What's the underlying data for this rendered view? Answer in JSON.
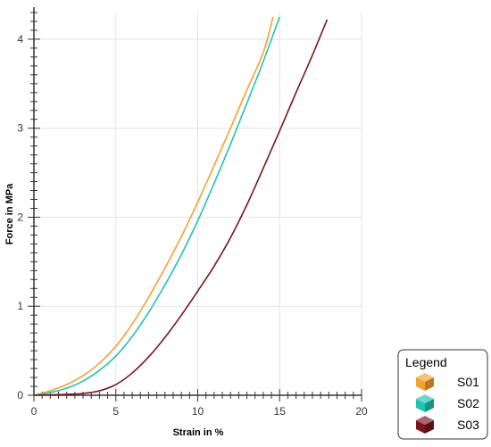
{
  "chart_data": {
    "type": "line",
    "title": "",
    "xlabel": "Strain  in %",
    "ylabel": "Force in MPa",
    "xlim": [
      0,
      20
    ],
    "ylim": [
      0,
      4.3
    ],
    "x_ticks": [
      0,
      5,
      10,
      15,
      20
    ],
    "y_ticks": [
      0,
      1,
      2,
      3,
      4
    ],
    "grid": true,
    "legend_title": "Legend",
    "legend_position": "bottom-right, outside plot",
    "series": [
      {
        "name": "S01",
        "color": "#f5a030",
        "icon": "orange-cube-icon",
        "points": [
          [
            0,
            0
          ],
          [
            1,
            0.05
          ],
          [
            2,
            0.12
          ],
          [
            3,
            0.22
          ],
          [
            4,
            0.36
          ],
          [
            5,
            0.55
          ],
          [
            6,
            0.8
          ],
          [
            7,
            1.1
          ],
          [
            8,
            1.43
          ],
          [
            9,
            1.78
          ],
          [
            10,
            2.17
          ],
          [
            11,
            2.58
          ],
          [
            12,
            3.0
          ],
          [
            13,
            3.43
          ],
          [
            14,
            3.85
          ],
          [
            14.6,
            4.25
          ]
        ]
      },
      {
        "name": "S02",
        "color": "#1fc4b0",
        "icon": "teal-cube-icon",
        "points": [
          [
            0,
            0
          ],
          [
            1,
            0.03
          ],
          [
            2,
            0.08
          ],
          [
            3,
            0.16
          ],
          [
            4,
            0.28
          ],
          [
            5,
            0.44
          ],
          [
            6,
            0.66
          ],
          [
            7,
            0.93
          ],
          [
            8,
            1.24
          ],
          [
            9,
            1.58
          ],
          [
            10,
            1.96
          ],
          [
            11,
            2.38
          ],
          [
            12,
            2.82
          ],
          [
            13,
            3.28
          ],
          [
            14,
            3.75
          ],
          [
            15,
            4.25
          ]
        ]
      },
      {
        "name": "S03",
        "color": "#7a1420",
        "icon": "maroon-cube-icon",
        "points": [
          [
            0,
            0
          ],
          [
            2,
            0.01
          ],
          [
            3,
            0.02
          ],
          [
            4,
            0.05
          ],
          [
            5,
            0.12
          ],
          [
            6,
            0.25
          ],
          [
            7,
            0.43
          ],
          [
            8,
            0.65
          ],
          [
            9,
            0.9
          ],
          [
            10,
            1.17
          ],
          [
            11,
            1.45
          ],
          [
            12,
            1.77
          ],
          [
            13,
            2.14
          ],
          [
            14,
            2.55
          ],
          [
            15,
            2.97
          ],
          [
            16,
            3.4
          ],
          [
            17,
            3.82
          ],
          [
            17.9,
            4.22
          ]
        ]
      }
    ]
  }
}
